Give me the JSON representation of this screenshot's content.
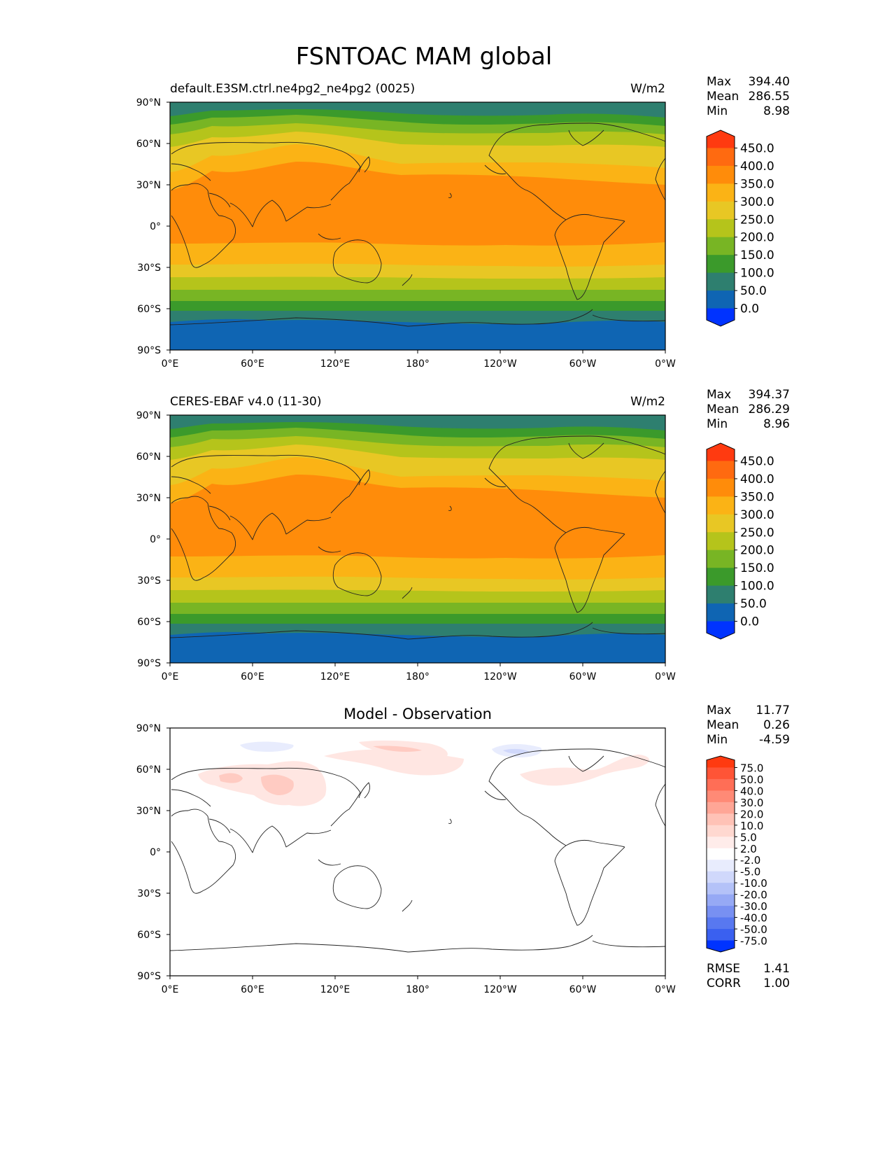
{
  "title": "FSNTOAC MAM global",
  "axes": {
    "lat_labels": [
      "90°N",
      "60°N",
      "30°N",
      "0°",
      "30°S",
      "60°S",
      "90°S"
    ],
    "lon_labels": [
      "0°E",
      "60°E",
      "120°E",
      "180°",
      "120°W",
      "60°W",
      "0°W"
    ]
  },
  "panels": [
    {
      "title": "default.E3SM.ctrl.ne4pg2_ne4pg2 (0025)",
      "units": "W/m2",
      "stats": {
        "max_label": "Max",
        "max": "394.40",
        "mean_label": "Mean",
        "mean": "286.55",
        "min_label": "Min",
        "min": "8.98"
      },
      "colorbar": {
        "levels": [
          "450.0",
          "400.0",
          "350.0",
          "300.0",
          "250.0",
          "200.0",
          "150.0",
          "100.0",
          "50.0",
          "0.0"
        ],
        "colors": [
          "#ff3a10",
          "#ff6a10",
          "#ff8c0a",
          "#fbb315",
          "#e8c724",
          "#b5c41b",
          "#78b524",
          "#3b9a2b",
          "#2e7f6f",
          "#0f65b3",
          "#0033ff"
        ]
      }
    },
    {
      "title": "CERES-EBAF v4.0 (11-30)",
      "units": "W/m2",
      "stats": {
        "max_label": "Max",
        "max": "394.37",
        "mean_label": "Mean",
        "mean": "286.29",
        "min_label": "Min",
        "min": "8.96"
      },
      "colorbar": {
        "levels": [
          "450.0",
          "400.0",
          "350.0",
          "300.0",
          "250.0",
          "200.0",
          "150.0",
          "100.0",
          "50.0",
          "0.0"
        ],
        "colors": [
          "#ff3a10",
          "#ff6a10",
          "#ff8c0a",
          "#fbb315",
          "#e8c724",
          "#b5c41b",
          "#78b524",
          "#3b9a2b",
          "#2e7f6f",
          "#0f65b3",
          "#0033ff"
        ]
      }
    },
    {
      "title": "Model - Observation",
      "units": "",
      "stats": {
        "max_label": "Max",
        "max": "11.77",
        "mean_label": "Mean",
        "mean": "0.26",
        "min_label": "Min",
        "min": "-4.59"
      },
      "colorbar": {
        "levels": [
          "75.0",
          "50.0",
          "40.0",
          "30.0",
          "20.0",
          "10.0",
          "5.0",
          "2.0",
          "-2.0",
          "-5.0",
          "-10.0",
          "-20.0",
          "-30.0",
          "-40.0",
          "-50.0",
          "-75.0"
        ],
        "colors": [
          "#ff3a10",
          "#ff5436",
          "#ff6e56",
          "#ff8a76",
          "#ffa696",
          "#ffc2b6",
          "#ffd8d0",
          "#ffecea",
          "#ffffff",
          "#e8ecfd",
          "#d0d8fb",
          "#b4c2f8",
          "#96a9f5",
          "#7890f2",
          "#5878f0",
          "#3a60f0",
          "#0033ff"
        ]
      },
      "extra_stats": {
        "rmse_label": "RMSE",
        "rmse": "1.41",
        "corr_label": "CORR",
        "corr": "1.00"
      }
    }
  ],
  "chart_data": {
    "type": "heatmap",
    "variable": "FSNTOAC",
    "season": "MAM",
    "region": "global",
    "units": "W/m2",
    "contour_levels": [
      0,
      50,
      100,
      150,
      200,
      250,
      300,
      350,
      400,
      450
    ],
    "diff_levels": [
      -75,
      -50,
      -40,
      -30,
      -20,
      -10,
      -5,
      -2,
      2,
      5,
      10,
      20,
      30,
      40,
      50,
      75
    ],
    "x_range": [
      0,
      360
    ],
    "y_range": [
      -90,
      90
    ],
    "zonal_profile": [
      {
        "lat": 90,
        "value": 110
      },
      {
        "lat": 75,
        "value": 155
      },
      {
        "lat": 65,
        "value": 210
      },
      {
        "lat": 55,
        "value": 255
      },
      {
        "lat": 45,
        "value": 300
      },
      {
        "lat": 35,
        "value": 340
      },
      {
        "lat": 20,
        "value": 370
      },
      {
        "lat": 0,
        "value": 375
      },
      {
        "lat": -20,
        "value": 345
      },
      {
        "lat": -30,
        "value": 310
      },
      {
        "lat": -40,
        "value": 260
      },
      {
        "lat": -50,
        "value": 200
      },
      {
        "lat": -60,
        "value": 140
      },
      {
        "lat": -70,
        "value": 60
      },
      {
        "lat": -90,
        "value": 10
      }
    ],
    "stats": [
      {
        "max": 394.4,
        "mean": 286.55,
        "min": 8.98
      },
      {
        "max": 394.37,
        "mean": 286.29,
        "min": 8.96
      },
      {
        "max": 11.77,
        "mean": 0.26,
        "min": -4.59,
        "rmse": 1.41,
        "corr": 1.0
      }
    ]
  }
}
